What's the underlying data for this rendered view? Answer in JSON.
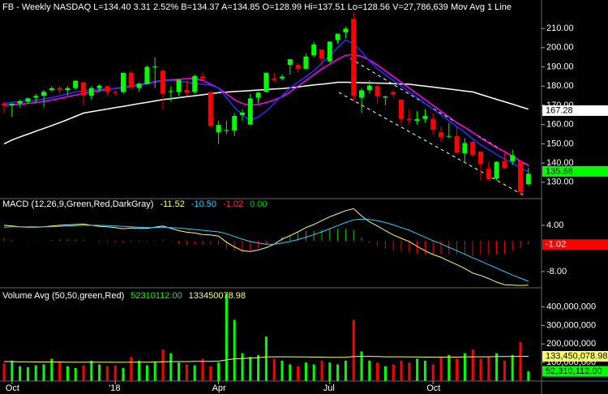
{
  "chart_data": [
    {
      "type": "candlestick",
      "title": "FB - Weekly  NASDAQ  L=134.40  3.31  2.52%  B=134.37  A=134.85  O=128.99  Hi=137.51  Lo=128.56  V=27,786,639  Mov Avg 1 Line",
      "categories": [
        null,
        "Oct",
        null,
        null,
        null,
        null,
        null,
        null,
        null,
        null,
        null,
        null,
        null,
        null,
        "'18",
        null,
        null,
        null,
        null,
        null,
        null,
        null,
        null,
        null,
        null,
        null,
        null,
        "Apr",
        null,
        null,
        null,
        null,
        null,
        null,
        null,
        null,
        null,
        null,
        null,
        null,
        null,
        "Jul",
        null,
        null,
        null,
        null,
        null,
        null,
        null,
        null,
        null,
        null,
        null,
        null,
        "Oct",
        null,
        null,
        null,
        null,
        null,
        null,
        null,
        null,
        null,
        null,
        null,
        null
      ],
      "open": [
        171,
        170,
        171,
        172,
        174,
        175,
        178,
        179,
        178,
        179,
        182,
        175,
        179,
        180,
        177,
        177,
        187,
        179,
        181,
        190,
        188,
        177,
        177,
        178,
        177,
        185,
        177,
        156,
        157,
        157,
        165,
        160,
        174,
        177,
        184,
        184,
        191,
        191,
        189,
        196,
        199,
        193,
        204,
        208,
        215,
        174,
        178,
        180,
        174,
        177,
        173,
        163,
        162,
        163,
        163,
        156,
        154,
        154,
        145,
        151,
        146,
        137,
        132,
        141,
        141,
        141,
        128.99
      ],
      "high": [
        172,
        171,
        173,
        174,
        176,
        178,
        180,
        180,
        180,
        183,
        182,
        180,
        181,
        180,
        178,
        187,
        188,
        182,
        191,
        195,
        189,
        180,
        183,
        183,
        186,
        187,
        177,
        162,
        162,
        166,
        168,
        176,
        177,
        187,
        187,
        186,
        194,
        192,
        197,
        203,
        199,
        203,
        207,
        211,
        218,
        179,
        183,
        181,
        175,
        178,
        173,
        168,
        167,
        168,
        166,
        159,
        161,
        159,
        153,
        152,
        146,
        141,
        141,
        146,
        147,
        141,
        137.51
      ],
      "low": [
        166,
        164,
        169,
        171,
        171,
        169,
        177,
        176,
        175,
        178,
        170,
        173,
        177,
        175,
        175,
        176,
        178,
        177,
        181,
        179,
        168,
        172,
        175,
        175,
        176,
        183,
        159,
        150,
        155,
        154,
        162,
        160,
        171,
        177,
        182,
        183,
        186,
        187,
        189,
        195,
        190,
        192,
        202,
        205,
        172,
        166,
        176,
        171,
        170,
        174,
        160,
        160,
        160,
        161,
        155,
        151,
        153,
        145,
        140,
        143,
        131,
        131,
        131,
        137,
        139,
        123,
        128.56
      ],
      "close": [
        170,
        170.9,
        172.2,
        173.7,
        174.9,
        177.1,
        178.9,
        178.1,
        179,
        182.8,
        175.1,
        179,
        180.2,
        177.2,
        176.5,
        186.9,
        179.4,
        181.3,
        190,
        190.3,
        176.1,
        177.4,
        183.3,
        176.6,
        185.2,
        184,
        159.4,
        159.8,
        157.2,
        164.5,
        166.3,
        173.6,
        176.6,
        187,
        183.2,
        184.9,
        194,
        189.1,
        195.4,
        201.7,
        194.3,
        203.2,
        207.3,
        209.9,
        174.9,
        177.8,
        180.3,
        174.7,
        174.6,
        175.7,
        163,
        162.3,
        162.9,
        164.5,
        157.3,
        153.4,
        154.1,
        145.4,
        150.4,
        144.2,
        139.5,
        131.7,
        140.6,
        137.4,
        144.1,
        124.95,
        134.4
      ],
      "up_color": "#00ff00",
      "down_color": "#ff0000",
      "overlays": [
        {
          "color": "#ffffff",
          "values": [
            150,
            152,
            153.6,
            155,
            156.6,
            158,
            159.5,
            161,
            162.6,
            164.3,
            166,
            166.7,
            167.4,
            168.1,
            168.8,
            169.5,
            170.2,
            170.9,
            171.6,
            172.3,
            173,
            173.5,
            174,
            174.5,
            175,
            175.5,
            176,
            176.6,
            176.9,
            177.2,
            177.4,
            177.7,
            178,
            178.2,
            178.5,
            178.7,
            179.2,
            179.6,
            180.1,
            180.6,
            181,
            181.5,
            182,
            182,
            181.9,
            181.8,
            181.7,
            181.6,
            181.5,
            181.3,
            181.1,
            181,
            180.5,
            180,
            179.5,
            179,
            178.5,
            178,
            177.5,
            177,
            175.7,
            174.4,
            173.1,
            171.9,
            170.6,
            169.3,
            168
          ]
        },
        {
          "color": "#ff00ff",
          "values": [
            170,
            170.3,
            170.6,
            171,
            171.5,
            172,
            172.8,
            173.6,
            174.5,
            175.4,
            176.4,
            177,
            177.6,
            178.2,
            178.8,
            179.4,
            180,
            180.8,
            181.6,
            182.3,
            183,
            183.3,
            183.6,
            183.9,
            184,
            183,
            181,
            179,
            176,
            173,
            171,
            170,
            170.5,
            171.5,
            172.8,
            174.5,
            177,
            180,
            183,
            186,
            189,
            191.5,
            194,
            196,
            196.5,
            195.5,
            193.5,
            191,
            188,
            185,
            182,
            179,
            176,
            173,
            170,
            167,
            164,
            161,
            158.5,
            156,
            153,
            150.5,
            148,
            146,
            143.5,
            141,
            139
          ]
        },
        {
          "color": "#2233ff",
          "values": [
            171,
            171.5,
            172,
            172.3,
            172.7,
            173.2,
            174,
            175,
            176,
            177,
            177.6,
            178,
            178.3,
            178.5,
            178.8,
            179,
            179.7,
            180.5,
            181.2,
            182,
            182.8,
            183,
            182.5,
            182,
            181.5,
            181,
            180.5,
            179,
            174,
            169,
            165,
            162,
            164,
            167,
            171,
            175,
            179,
            182,
            185,
            188,
            192,
            196,
            200,
            204,
            202,
            198,
            193,
            189,
            186,
            183,
            180,
            177,
            174,
            171,
            168,
            165,
            162,
            159,
            156,
            152.5,
            149.5,
            147,
            144.5,
            142,
            140,
            137.5,
            135.5
          ]
        }
      ],
      "ylim": [
        121.5,
        224.8
      ],
      "yticks": [
        {
          "value": 130,
          "label": "130.00"
        },
        {
          "value": 140,
          "label": "140.00"
        },
        {
          "value": 150,
          "label": "150.00"
        },
        {
          "value": 160,
          "label": "160.00"
        },
        {
          "value": 170,
          "label": "170.00"
        },
        {
          "value": 180,
          "label": "180.00"
        },
        {
          "value": 190,
          "label": "190.00"
        },
        {
          "value": 200,
          "label": "200.00"
        },
        {
          "value": 210,
          "label": "210.00"
        }
      ],
      "tags": [
        {
          "value": 167.28,
          "color": "#ffffff"
        },
        {
          "value": 135.68,
          "color": "#00ff00"
        }
      ]
    },
    {
      "type": "line",
      "title": "MACD (12,26,9,Green,Red,DarkGray)",
      "legend_values": [
        {
          "text": "-11.52",
          "color": "#ffff66"
        },
        {
          "text": "-10.50",
          "color": "#33ccff"
        },
        {
          "text": "-1.02",
          "color": "#ff3333"
        },
        {
          "text": "0.00",
          "color": "#00cc00"
        }
      ],
      "series": [
        {
          "color": "#ffff66",
          "values": [
            4,
            3.8,
            3.6,
            3.5,
            3.5,
            3.6,
            3.8,
            4,
            4.1,
            4.2,
            4.3,
            4,
            3.7,
            3.6,
            3.4,
            3.1,
            3.3,
            3.2,
            3.2,
            3.5,
            3.8,
            3.2,
            2.6,
            2.2,
            2,
            1.6,
            1.5,
            1.2,
            -0.4,
            -1.6,
            -2.6,
            -2.8,
            -2.4,
            -1.8,
            -0.9,
            0.4,
            1.3,
            2.3,
            3.4,
            4.2,
            5.2,
            6.2,
            7,
            7.8,
            8.3,
            6.4,
            4.9,
            3.8,
            2.6,
            1.5,
            0.6,
            -0.2,
            -1.5,
            -2.6,
            -3.6,
            -4.3,
            -5.3,
            -6.2,
            -7.2,
            -8.4,
            -9,
            -9.8,
            -10.7,
            -11.4,
            -11.5,
            -11.6,
            -11.52
          ]
        },
        {
          "color": "#33ccff",
          "values": [
            3.5,
            3.6,
            3.6,
            3.6,
            3.6,
            3.6,
            3.6,
            3.7,
            3.8,
            3.9,
            4,
            4,
            4,
            3.9,
            3.8,
            3.7,
            3.6,
            3.5,
            3.4,
            3.4,
            3.5,
            3.4,
            3.3,
            3.1,
            2.9,
            2.7,
            2.5,
            2.3,
            1.8,
            1.1,
            0.4,
            -0.2,
            -0.6,
            -0.9,
            -0.9,
            -0.6,
            -0.2,
            0.3,
            0.9,
            1.6,
            2.3,
            3.1,
            3.9,
            4.7,
            5.4,
            5.6,
            5.5,
            5.2,
            4.7,
            4.1,
            3.4,
            2.7,
            1.8,
            0.9,
            0,
            -0.8,
            -1.7,
            -2.6,
            -3.5,
            -4.4,
            -5.3,
            -6.2,
            -7.1,
            -8,
            -8.9,
            -9.7,
            -10.5
          ]
        },
        {
          "pos_color": "#00cc00",
          "neg_color": "#ff0000",
          "values": [
            0.5,
            0.2,
            0,
            -0.1,
            -0.1,
            0,
            0.2,
            0.3,
            0.3,
            0.3,
            0.3,
            0,
            -0.3,
            -0.3,
            -0.4,
            -0.6,
            -0.3,
            -0.3,
            -0.2,
            0.1,
            0.3,
            -0.2,
            -0.7,
            -0.9,
            -0.9,
            -1.1,
            -1,
            -1.1,
            -2.2,
            -2.7,
            -3,
            -2.6,
            -1.8,
            -0.9,
            0,
            1,
            1.5,
            2,
            2.5,
            2.6,
            2.9,
            3.1,
            3.1,
            3.1,
            2.9,
            0.8,
            -0.6,
            -1.4,
            -2.1,
            -2.6,
            -2.8,
            -2.9,
            -3.3,
            -3.5,
            -3.6,
            -3.5,
            -3.6,
            -3.6,
            -3.7,
            -4,
            -3.7,
            -3.6,
            -3.6,
            -3.4,
            -2.6,
            -1.9,
            -1.02
          ]
        }
      ],
      "ylim": [
        -12.2,
        10.9
      ],
      "yticks": [
        {
          "value": -8,
          "label": "-8.00"
        },
        {
          "value": 4,
          "label": "4.00"
        }
      ],
      "tags": [
        {
          "value": -1.02,
          "color": "#ff0000"
        }
      ]
    },
    {
      "type": "bar",
      "title": "Volume Avg (50,50,green,Red)",
      "legend_values": [
        {
          "text": "52310112.00",
          "color": "#00ff00"
        },
        {
          "text": "133450078.98",
          "color": "#ffff66"
        }
      ],
      "values": [
        95000000,
        110000000,
        80000000,
        75000000,
        85000000,
        90000000,
        120000000,
        100000000,
        80000000,
        70000000,
        85000000,
        110000000,
        90000000,
        80000000,
        85000000,
        70000000,
        130000000,
        110000000,
        85000000,
        100000000,
        170000000,
        150000000,
        100000000,
        90000000,
        85000000,
        120000000,
        80000000,
        100000000,
        470000000,
        330000000,
        150000000,
        130000000,
        140000000,
        240000000,
        120000000,
        110000000,
        90000000,
        80000000,
        100000000,
        90000000,
        110000000,
        100000000,
        90000000,
        110000000,
        330000000,
        160000000,
        110000000,
        100000000,
        80000000,
        90000000,
        110000000,
        100000000,
        120000000,
        110000000,
        90000000,
        130000000,
        140000000,
        120000000,
        150000000,
        170000000,
        120000000,
        130000000,
        150000000,
        110000000,
        140000000,
        210000000,
        52310112
      ],
      "average": {
        "color": "#ffff66",
        "values": [
          105000000,
          105000000,
          104000000,
          104000000,
          103000000,
          103000000,
          103000000,
          103000000,
          102000000,
          102000000,
          102000000,
          102000000,
          102000000,
          102000000,
          101000000,
          101000000,
          102000000,
          102000000,
          102000000,
          103000000,
          104000000,
          105000000,
          105000000,
          105000000,
          106000000,
          106000000,
          106000000,
          107000000,
          114000000,
          120000000,
          122000000,
          124000000,
          126000000,
          130000000,
          131000000,
          131000000,
          131000000,
          130000000,
          130000000,
          129000000,
          129000000,
          128000000,
          128000000,
          128000000,
          132000000,
          133000000,
          133000000,
          132000000,
          131000000,
          131000000,
          131000000,
          130000000,
          130000000,
          129000000,
          129000000,
          129000000,
          129000000,
          129000000,
          130000000,
          131000000,
          131000000,
          131000000,
          132000000,
          132000000,
          132000000,
          133000000,
          133450078.98
        ]
      },
      "ylim": [
        0,
        490000000
      ],
      "yticks": [
        {
          "value": 100000000,
          "label": "100,000,000"
        },
        {
          "value": 200000000,
          "label": "200,000,000"
        },
        {
          "value": 300000000,
          "label": "300,000,000"
        },
        {
          "value": 400000000,
          "label": "400,000,000"
        }
      ],
      "tags": [
        {
          "value": 133450078.98,
          "label": "133,450,078.98",
          "color": "#ffff66"
        },
        {
          "value": 52310112,
          "label": "52,310,112.00",
          "color": "#00ff00"
        }
      ]
    }
  ]
}
